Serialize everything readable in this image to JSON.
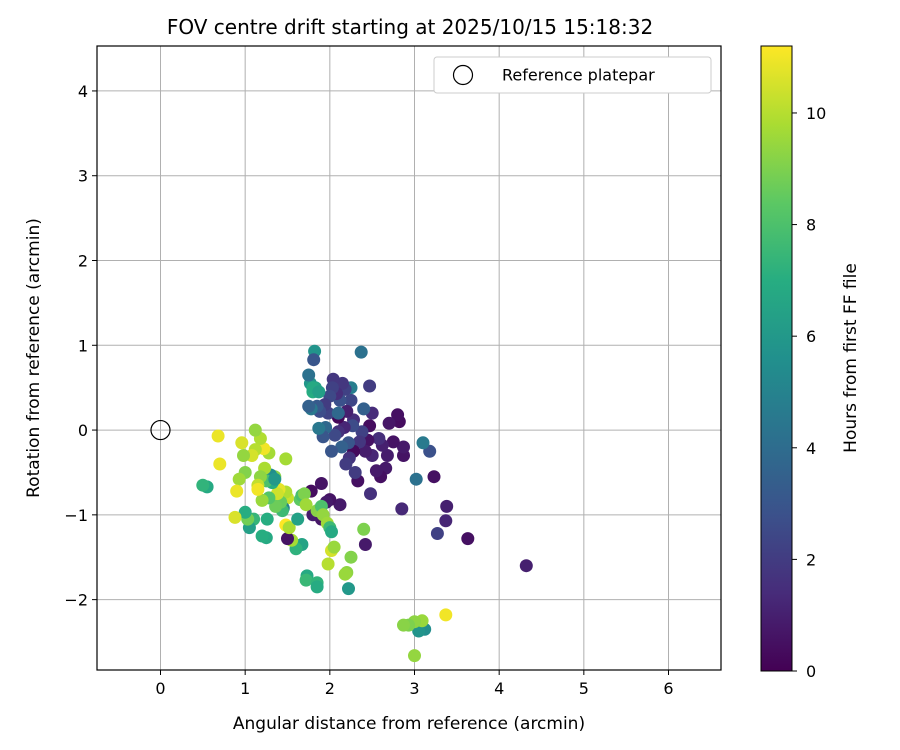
{
  "chart_data": {
    "type": "scatter",
    "title": "FOV centre drift starting at 2025/10/15 15:18:32",
    "xlabel": "Angular distance from reference (arcmin)",
    "ylabel": "Rotation from reference (arcmin)",
    "xlim": [
      -0.75,
      6.62
    ],
    "ylim": [
      -2.83,
      4.53
    ],
    "xticks": [
      0,
      1,
      2,
      3,
      4,
      5,
      6
    ],
    "yticks": [
      -2,
      -1,
      0,
      1,
      2,
      3,
      4
    ],
    "grid": true,
    "legend": {
      "label": "Reference platepar",
      "placement": "top-right"
    },
    "reference_point": {
      "x": 0,
      "y": 0
    },
    "colorbar": {
      "label": "Hours from first FF file",
      "colormap": "viridis",
      "range": [
        0,
        11.2
      ],
      "ticks": [
        0,
        2,
        4,
        6,
        8,
        10
      ]
    },
    "points": [
      [
        4.32,
        -1.6,
        1.0
      ],
      [
        3.63,
        -1.28,
        0.5
      ],
      [
        3.38,
        -0.9,
        1.0
      ],
      [
        3.37,
        -1.07,
        1.2
      ],
      [
        3.27,
        -1.22,
        2.2
      ],
      [
        3.23,
        -0.55,
        0.5
      ],
      [
        3.18,
        -0.25,
        2.8
      ],
      [
        3.1,
        -0.15,
        4.6
      ],
      [
        3.02,
        -0.58,
        4.2
      ],
      [
        3.12,
        -2.35,
        5.5
      ],
      [
        3.05,
        -2.37,
        5.8
      ],
      [
        3.37,
        -2.18,
        11.0
      ],
      [
        3.09,
        -2.25,
        9.5
      ],
      [
        3.0,
        -2.26,
        9.3
      ],
      [
        2.93,
        -2.3,
        9.0
      ],
      [
        2.87,
        -2.3,
        9.2
      ],
      [
        3.0,
        -2.66,
        9.4
      ],
      [
        2.87,
        -0.3,
        0.6
      ],
      [
        2.87,
        -0.2,
        0.8
      ],
      [
        2.85,
        -0.93,
        1.3
      ],
      [
        2.82,
        0.1,
        0.4
      ],
      [
        2.8,
        0.18,
        0.5
      ],
      [
        2.75,
        -0.14,
        0.6
      ],
      [
        2.7,
        0.08,
        0.7
      ],
      [
        2.68,
        -0.3,
        0.9
      ],
      [
        2.66,
        -0.45,
        0.8
      ],
      [
        2.62,
        -0.18,
        1.0
      ],
      [
        2.6,
        -0.55,
        0.5
      ],
      [
        2.58,
        -0.1,
        1.5
      ],
      [
        2.55,
        -0.48,
        0.8
      ],
      [
        2.5,
        -0.3,
        1.2
      ],
      [
        2.5,
        0.2,
        1.4
      ],
      [
        2.48,
        -0.75,
        1.6
      ],
      [
        2.47,
        0.05,
        0.4
      ],
      [
        2.47,
        0.52,
        2.0
      ],
      [
        2.45,
        -0.12,
        0.6
      ],
      [
        2.42,
        -1.35,
        0.8
      ],
      [
        2.42,
        -0.25,
        0.9
      ],
      [
        2.4,
        0.25,
        3.5
      ],
      [
        2.38,
        -0.02,
        2.2
      ],
      [
        2.37,
        0.92,
        4.2
      ],
      [
        2.35,
        -0.14,
        1.8
      ],
      [
        2.33,
        -0.6,
        0.5
      ],
      [
        2.3,
        -0.5,
        2.0
      ],
      [
        2.28,
        0.12,
        1.5
      ],
      [
        2.28,
        -0.25,
        0.3
      ],
      [
        2.27,
        0.05,
        2.6
      ],
      [
        2.25,
        0.5,
        4.8
      ],
      [
        2.25,
        0.35,
        2.4
      ],
      [
        2.23,
        -0.33,
        1.7
      ],
      [
        2.22,
        -0.15,
        3.0
      ],
      [
        2.2,
        0.22,
        1.0
      ],
      [
        2.19,
        -0.4,
        2.0
      ],
      [
        2.18,
        0.48,
        2.2
      ],
      [
        2.17,
        0.03,
        1.2
      ],
      [
        2.15,
        0.55,
        1.8
      ],
      [
        2.14,
        -0.2,
        3.5
      ],
      [
        2.12,
        -0.88,
        0.8
      ],
      [
        2.12,
        0.35,
        2.8
      ],
      [
        2.1,
        0.15,
        0.2
      ],
      [
        2.1,
        -0.02,
        1.6
      ],
      [
        2.08,
        0.43,
        1.5
      ],
      [
        2.06,
        -0.06,
        2.5
      ],
      [
        2.04,
        0.6,
        1.8
      ],
      [
        2.03,
        0.5,
        2.2
      ],
      [
        2.02,
        -0.25,
        3.0
      ],
      [
        2.0,
        0.4,
        2.5
      ],
      [
        2.0,
        -0.82,
        0.6
      ],
      [
        1.98,
        0.2,
        2.3
      ],
      [
        1.96,
        -0.85,
        0.8
      ],
      [
        1.95,
        0.03,
        3.8
      ],
      [
        1.94,
        0.3,
        2.0
      ],
      [
        1.92,
        -0.08,
        3.0
      ],
      [
        1.9,
        -1.05,
        0.7
      ],
      [
        1.9,
        -0.63,
        0.6
      ],
      [
        1.88,
        0.22,
        2.7
      ],
      [
        1.87,
        0.02,
        4.5
      ],
      [
        1.85,
        0.28,
        3.2
      ],
      [
        1.83,
        0.5,
        6.5
      ],
      [
        1.82,
        0.93,
        5.8
      ],
      [
        1.81,
        0.83,
        3.0
      ],
      [
        1.8,
        0.45,
        7.0
      ],
      [
        1.78,
        0.25,
        4.5
      ],
      [
        1.77,
        0.55,
        5.9
      ],
      [
        1.75,
        0.65,
        4.2
      ],
      [
        1.75,
        0.28,
        3.5
      ],
      [
        1.8,
        0.5,
        6.8
      ],
      [
        1.87,
        0.45,
        6.3
      ],
      [
        2.1,
        0.2,
        3.8
      ],
      [
        1.78,
        -0.72,
        0.4
      ],
      [
        1.8,
        -1.0,
        0.9
      ],
      [
        1.85,
        -0.95,
        9.2
      ],
      [
        1.9,
        -0.9,
        8.0
      ],
      [
        1.92,
        -1.0,
        9.4
      ],
      [
        1.97,
        -1.1,
        9.6
      ],
      [
        2.0,
        -1.15,
        7.6
      ],
      [
        2.02,
        -1.2,
        6.8
      ],
      [
        2.02,
        -1.42,
        10.5
      ],
      [
        2.05,
        -1.38,
        9.5
      ],
      [
        1.98,
        -1.58,
        10.0
      ],
      [
        2.4,
        -1.17,
        9.0
      ],
      [
        2.25,
        -1.5,
        9.1
      ],
      [
        2.2,
        -1.68,
        9.3
      ],
      [
        2.18,
        -1.7,
        9.5
      ],
      [
        2.22,
        -1.87,
        6.0
      ],
      [
        1.73,
        -1.72,
        6.8
      ],
      [
        1.72,
        -1.77,
        7.5
      ],
      [
        1.85,
        -1.8,
        7.3
      ],
      [
        1.85,
        -1.85,
        6.9
      ],
      [
        1.67,
        -1.35,
        6.5
      ],
      [
        1.6,
        -1.4,
        7.2
      ],
      [
        1.55,
        -1.3,
        9.7
      ],
      [
        1.5,
        -1.28,
        0.6
      ],
      [
        1.48,
        -1.12,
        11.2
      ],
      [
        1.52,
        -1.15,
        9.8
      ],
      [
        1.62,
        -1.05,
        6.4
      ],
      [
        1.65,
        -0.82,
        8.4
      ],
      [
        1.67,
        -0.77,
        7.9
      ],
      [
        1.7,
        -0.75,
        9.0
      ],
      [
        1.72,
        -0.88,
        9.6
      ],
      [
        1.5,
        -0.8,
        10.3
      ],
      [
        1.48,
        -0.73,
        9.9
      ],
      [
        1.45,
        -0.92,
        5.0
      ],
      [
        1.44,
        -0.95,
        7.6
      ],
      [
        1.42,
        -0.85,
        8.6
      ],
      [
        1.4,
        -0.7,
        10.8
      ],
      [
        1.38,
        -0.75,
        10.4
      ],
      [
        1.36,
        -0.9,
        8.7
      ],
      [
        1.35,
        -0.55,
        9.2
      ],
      [
        1.32,
        -0.62,
        7.0
      ],
      [
        1.3,
        -0.53,
        5.5
      ],
      [
        1.28,
        -0.8,
        8.2
      ],
      [
        1.28,
        -0.27,
        9.7
      ],
      [
        1.26,
        -1.05,
        7.0
      ],
      [
        1.25,
        -0.6,
        8.0
      ],
      [
        1.25,
        -1.27,
        6.8
      ],
      [
        1.23,
        -0.45,
        9.8
      ],
      [
        1.22,
        -0.22,
        11.0
      ],
      [
        1.2,
        -0.83,
        9.5
      ],
      [
        1.2,
        -1.25,
        7.0
      ],
      [
        1.18,
        -0.55,
        9.3
      ],
      [
        1.18,
        -0.1,
        9.9
      ],
      [
        1.15,
        -0.65,
        10.2
      ],
      [
        1.15,
        -0.7,
        11.0
      ],
      [
        1.12,
        0.0,
        9.4
      ],
      [
        1.12,
        -0.23,
        10.0
      ],
      [
        1.1,
        -1.05,
        7.4
      ],
      [
        1.08,
        -0.3,
        10.5
      ],
      [
        1.05,
        -1.15,
        6.3
      ],
      [
        1.03,
        -1.05,
        8.8
      ],
      [
        1.0,
        -0.97,
        7.0
      ],
      [
        1.0,
        -0.5,
        9.1
      ],
      [
        0.98,
        -0.3,
        9.4
      ],
      [
        0.96,
        -0.15,
        10.6
      ],
      [
        0.93,
        -0.58,
        9.6
      ],
      [
        0.9,
        -0.72,
        10.9
      ],
      [
        0.88,
        -1.03,
        10.6
      ],
      [
        0.68,
        -0.07,
        10.9
      ],
      [
        0.7,
        -0.4,
        10.9
      ],
      [
        0.55,
        -0.67,
        6.8
      ],
      [
        0.5,
        -0.65,
        7.3
      ],
      [
        1.48,
        -0.34,
        9.7
      ],
      [
        1.35,
        -0.58,
        6.0
      ]
    ]
  }
}
